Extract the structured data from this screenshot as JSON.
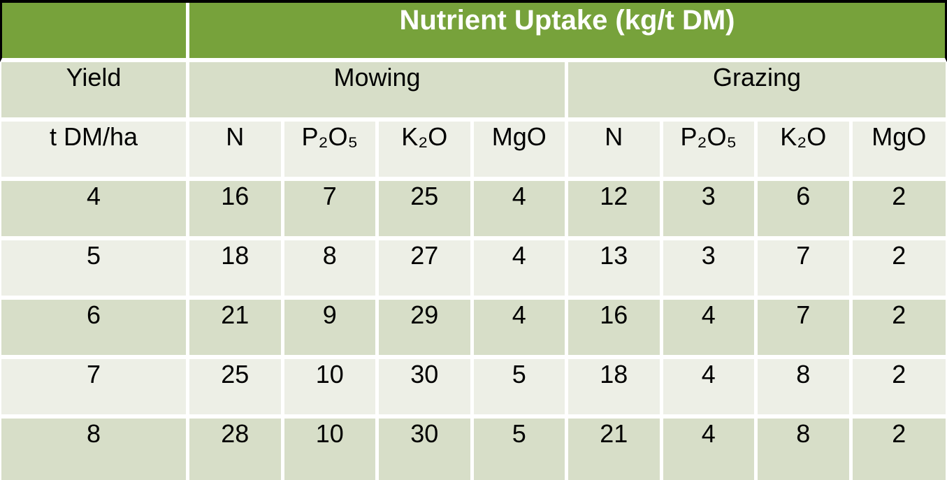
{
  "colors": {
    "header-green": "#77A23B",
    "band-dark": "#D7DEC8",
    "band-light": "#EDEFE6",
    "grid-white": "#FFFFFF",
    "outline-black": "#000000",
    "header-text": "#FFFFFF",
    "body-text": "#000000"
  },
  "chart_data": {
    "type": "table",
    "title": "Nutrient Uptake (kg/t DM)",
    "row_header": {
      "label": "Yield",
      "unit": "t DM/ha"
    },
    "groups": [
      {
        "name": "Mowing",
        "columns": [
          "N",
          "P₂O₅",
          "K₂O",
          "MgO"
        ]
      },
      {
        "name": "Grazing",
        "columns": [
          "N",
          "P₂O₅",
          "K₂O",
          "MgO"
        ]
      }
    ],
    "rows": [
      {
        "yield": 4,
        "mowing": [
          16,
          7,
          25,
          4
        ],
        "grazing": [
          12,
          3,
          6,
          2
        ]
      },
      {
        "yield": 5,
        "mowing": [
          18,
          8,
          27,
          4
        ],
        "grazing": [
          13,
          3,
          7,
          2
        ]
      },
      {
        "yield": 6,
        "mowing": [
          21,
          9,
          29,
          4
        ],
        "grazing": [
          16,
          4,
          7,
          2
        ]
      },
      {
        "yield": 7,
        "mowing": [
          25,
          10,
          30,
          5
        ],
        "grazing": [
          18,
          4,
          8,
          2
        ]
      },
      {
        "yield": 8,
        "mowing": [
          28,
          10,
          30,
          5
        ],
        "grazing": [
          21,
          4,
          8,
          2
        ]
      }
    ]
  }
}
